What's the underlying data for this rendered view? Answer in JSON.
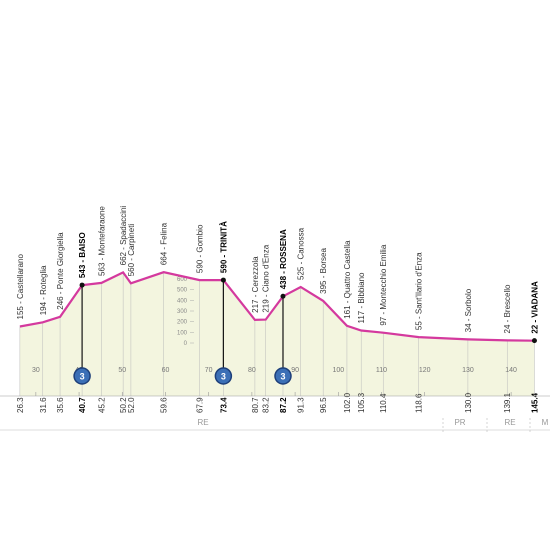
{
  "chart_data": {
    "type": "area",
    "x": [
      26.3,
      31.6,
      35.6,
      40.7,
      45.2,
      50.2,
      52.0,
      59.6,
      67.9,
      73.4,
      80.7,
      83.2,
      87.2,
      91.3,
      96.5,
      102.0,
      105.3,
      110.4,
      118.6,
      130.0,
      139.1,
      145.4
    ],
    "x_labels": [
      "26.3",
      "31.6",
      "35.6",
      "40.7",
      "45.2",
      "50.2",
      "52.0",
      "59.6",
      "67.9",
      "73.4",
      "80.7",
      "83.2",
      "87.2",
      "91.3",
      "96.5",
      "102.0",
      "105.3",
      "110.4",
      "118.6",
      "130.0",
      "139.1",
      "145.4"
    ],
    "values": [
      155,
      194,
      246,
      543,
      563,
      662,
      560,
      664,
      590,
      590,
      217,
      219,
      438,
      525,
      395,
      161,
      117,
      97,
      55,
      34,
      24,
      22
    ],
    "value_labels": [
      "155 - Castellarano",
      "194 - Roteglia",
      "246 - Ponte Giorgiella",
      "543 - BAISO",
      "563 - Montefaraone",
      "662 - Spadaccini",
      "560 - Carpineti",
      "664 - Felina",
      "590 - Gombio",
      "590 - TRINITÀ",
      "217 - Cerezzola",
      "219 - Ciano d'Enza",
      "438 - ROSSENA",
      "525 - Canossa",
      "395 - Borsea",
      "161 - Quattro Castella",
      "117 - Bibbiano",
      "97 - Montecchio Emilia",
      "55 - Sant'Ilario d'Enza",
      "34 - Sorbolo",
      "24 - Brescello",
      "22 - VIADANA"
    ],
    "highlight": [
      3,
      9,
      12,
      21
    ],
    "climbs": [
      {
        "index": 3,
        "label": "3"
      },
      {
        "index": 9,
        "label": "3"
      },
      {
        "index": 12,
        "label": "3"
      }
    ],
    "color": "#d4399e",
    "fill": "#f3f5df",
    "xlim": [
      21.7,
      149
    ],
    "xticks": [
      30,
      40,
      50,
      60,
      70,
      80,
      90,
      100,
      110,
      120,
      130,
      140
    ],
    "ylim": [
      0,
      600
    ],
    "yticks": [
      0,
      100,
      200,
      300,
      400,
      500,
      600
    ],
    "regions": [
      "RE",
      "PR",
      "RE",
      "M"
    ]
  }
}
